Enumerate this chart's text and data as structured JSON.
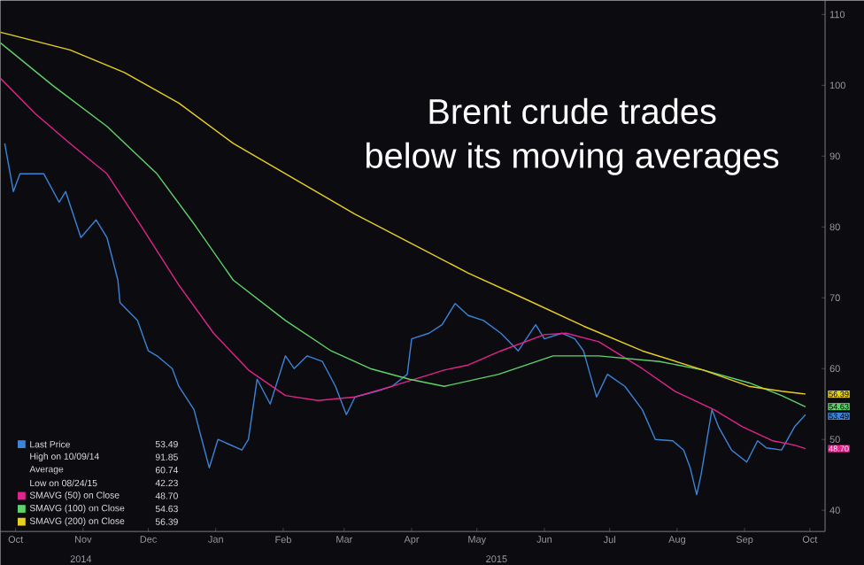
{
  "chart_data": {
    "type": "line",
    "title": "Brent crude trades below its moving averages",
    "xlim": [
      "2014-10-08",
      "2015-10-22"
    ],
    "xticks": [
      {
        "value": "2014-10-15",
        "label": "Oct"
      },
      {
        "value": "2014-11-15",
        "label": "Nov"
      },
      {
        "value": "2014-12-15",
        "label": "Dec"
      },
      {
        "value": "2015-01-15",
        "label": "Jan"
      },
      {
        "value": "2015-02-15",
        "label": "Feb"
      },
      {
        "value": "2015-03-15",
        "label": "Mar"
      },
      {
        "value": "2015-04-15",
        "label": "Apr"
      },
      {
        "value": "2015-05-15",
        "label": "May"
      },
      {
        "value": "2015-06-15",
        "label": "Jun"
      },
      {
        "value": "2015-07-15",
        "label": "Jul"
      },
      {
        "value": "2015-08-15",
        "label": "Aug"
      },
      {
        "value": "2015-09-15",
        "label": "Sep"
      },
      {
        "value": "2015-10-15",
        "label": "Oct"
      }
    ],
    "x2lim": [
      "2014-10-08",
      "2015-10-22"
    ],
    "x2ticks": [
      {
        "value": "2014-11-14",
        "label": "2014"
      },
      {
        "value": "2015-05-24",
        "label": "2015"
      }
    ],
    "ylim": [
      37,
      112
    ],
    "yticks": [
      40,
      50,
      60,
      70,
      80,
      90,
      100,
      110
    ],
    "legend": "bottom left",
    "series": [
      {
        "name": "Last Price",
        "color": "#3c84d8",
        "x": [
          "2014-10-10",
          "2014-10-14",
          "2014-10-17",
          "2014-10-28",
          "2014-11-04",
          "2014-11-07",
          "2014-11-14",
          "2014-11-21",
          "2014-11-26",
          "2014-12-01",
          "2014-12-02",
          "2014-12-10",
          "2014-12-15",
          "2014-12-19",
          "2014-12-26",
          "2014-12-29",
          "2015-01-05",
          "2015-01-07",
          "2015-01-12",
          "2015-01-16",
          "2015-01-27",
          "2015-01-30",
          "2015-02-03",
          "2015-02-09",
          "2015-02-16",
          "2015-02-20",
          "2015-02-26",
          "2015-03-05",
          "2015-03-11",
          "2015-03-16",
          "2015-03-20",
          "2015-03-30",
          "2015-04-06",
          "2015-04-13",
          "2015-04-15",
          "2015-04-23",
          "2015-04-29",
          "2015-05-05",
          "2015-05-11",
          "2015-05-18",
          "2015-05-26",
          "2015-06-03",
          "2015-06-11",
          "2015-06-15",
          "2015-06-23",
          "2015-06-29",
          "2015-07-03",
          "2015-07-06",
          "2015-07-09",
          "2015-07-14",
          "2015-07-22",
          "2015-07-30",
          "2015-08-05",
          "2015-08-13",
          "2015-08-18",
          "2015-08-21",
          "2015-08-24",
          "2015-08-26",
          "2015-08-31",
          "2015-09-03",
          "2015-09-09",
          "2015-09-16",
          "2015-09-21",
          "2015-09-25",
          "2015-10-02",
          "2015-10-08",
          "2015-10-13"
        ],
        "values": [
          91.8,
          85.0,
          87.5,
          87.5,
          83.5,
          85.0,
          78.5,
          81.0,
          78.5,
          72.5,
          69.3,
          66.8,
          62.5,
          61.8,
          60.0,
          57.5,
          54.2,
          51.8,
          46.0,
          50.0,
          48.5,
          50.0,
          58.5,
          55.0,
          61.8,
          60.0,
          61.8,
          61.0,
          57.5,
          53.5,
          56.0,
          56.8,
          57.5,
          59.2,
          64.2,
          65.0,
          66.2,
          69.2,
          67.5,
          66.8,
          65.0,
          62.5,
          66.2,
          64.2,
          65.0,
          64.2,
          62.5,
          59.2,
          56.0,
          59.2,
          57.5,
          54.2,
          50.0,
          49.8,
          48.5,
          46.0,
          42.2,
          45.0,
          54.2,
          51.8,
          48.5,
          46.8,
          49.8,
          48.8,
          48.5,
          51.8,
          53.5
        ]
      },
      {
        "name": "SMAVG (50) on Close",
        "color": "#e0248c",
        "x": [
          "2014-10-08",
          "2014-10-24",
          "2014-11-09",
          "2014-11-26",
          "2014-12-12",
          "2014-12-29",
          "2015-01-14",
          "2015-01-30",
          "2015-02-16",
          "2015-03-03",
          "2015-03-20",
          "2015-04-06",
          "2015-04-30",
          "2015-05-11",
          "2015-05-26",
          "2015-06-15",
          "2015-06-25",
          "2015-07-10",
          "2015-07-30",
          "2015-08-14",
          "2015-09-01",
          "2015-09-14",
          "2015-09-28",
          "2015-10-08",
          "2015-10-13"
        ],
        "values": [
          101.0,
          96.0,
          91.8,
          87.5,
          80.0,
          71.8,
          65.0,
          59.8,
          56.2,
          55.5,
          56.0,
          57.5,
          59.8,
          60.5,
          62.5,
          64.8,
          65.0,
          63.8,
          60.0,
          56.8,
          54.2,
          51.8,
          49.8,
          49.2,
          48.7
        ]
      },
      {
        "name": "SMAVG (100) on Close",
        "color": "#5fd36a",
        "x": [
          "2014-10-08",
          "2014-11-01",
          "2014-11-26",
          "2014-12-19",
          "2015-01-06",
          "2015-01-23",
          "2015-02-16",
          "2015-03-09",
          "2015-03-27",
          "2015-04-14",
          "2015-04-30",
          "2015-05-25",
          "2015-06-19",
          "2015-07-10",
          "2015-08-07",
          "2015-08-27",
          "2015-09-17",
          "2015-10-02",
          "2015-10-13"
        ],
        "values": [
          106.0,
          100.0,
          94.2,
          87.5,
          80.0,
          72.5,
          66.8,
          62.5,
          60.0,
          58.5,
          57.5,
          59.2,
          61.8,
          61.8,
          61.0,
          59.8,
          58.0,
          56.2,
          54.6
        ]
      },
      {
        "name": "SMAVG (200) on Close",
        "color": "#e8d020",
        "x": [
          "2014-10-08",
          "2014-11-09",
          "2014-12-04",
          "2014-12-29",
          "2015-01-23",
          "2015-02-20",
          "2015-03-20",
          "2015-04-16",
          "2015-05-11",
          "2015-06-05",
          "2015-07-03",
          "2015-07-30",
          "2015-08-27",
          "2015-09-17",
          "2015-10-02",
          "2015-10-13"
        ],
        "values": [
          107.5,
          105.0,
          101.8,
          97.5,
          91.8,
          86.8,
          81.8,
          77.5,
          73.5,
          70.0,
          66.0,
          62.5,
          59.8,
          57.5,
          56.8,
          56.4
        ]
      }
    ],
    "annotations": [
      {
        "text": "53.49",
        "x": "2015-10-13",
        "y": 53.49
      },
      {
        "text": "48.70",
        "x": "2015-10-13",
        "y": 48.7
      },
      {
        "text": "54.63",
        "x": "2015-10-13",
        "y": 54.63
      },
      {
        "text": "56.39",
        "x": "2015-10-13",
        "y": 56.39
      },
      "High on 10/09/14",
      "91.85",
      "Average",
      "60.74",
      "Low on 08/24/15",
      "42.23"
    ]
  }
}
